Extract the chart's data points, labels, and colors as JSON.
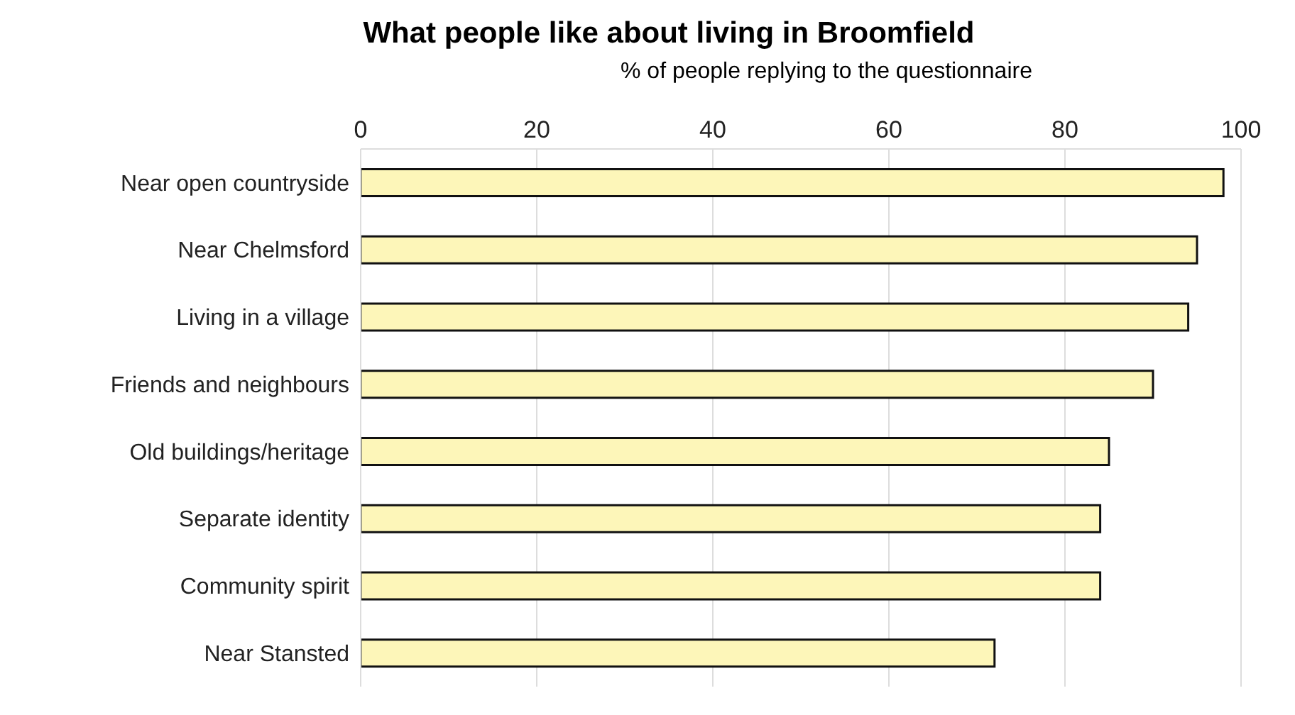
{
  "chart_data": {
    "type": "bar",
    "orientation": "horizontal",
    "title": "What people like about living in Broomfield",
    "xlabel": "% of people replying to the questionnaire",
    "categories": [
      "Near open countryside",
      "Near Chelmsford",
      "Living in a village",
      "Friends and neighbours",
      "Old buildings/heritage",
      "Separate identity",
      "Community spirit",
      "Near Stansted"
    ],
    "values": [
      98,
      95,
      94,
      90,
      85,
      84,
      84,
      72
    ],
    "color": "#fdf6b9",
    "xlim": [
      0,
      100
    ],
    "xticks": [
      0,
      20,
      40,
      60,
      80,
      100
    ],
    "grid": "x"
  }
}
